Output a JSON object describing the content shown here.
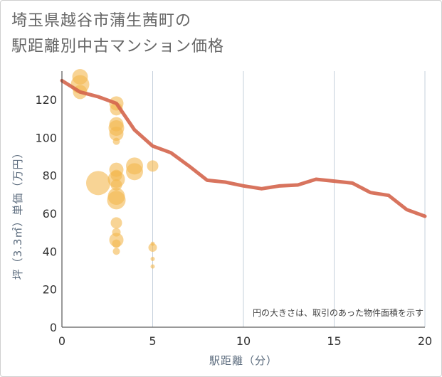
{
  "title_line1": "埼玉県越谷市蒲生茜町の",
  "title_line2": "駅距離別中古マンション価格",
  "chart_data": {
    "type": "scatter",
    "xlabel": "駅距離（分）",
    "ylabel": "坪（3.3㎡）単価（万円）",
    "xlim": [
      0,
      20
    ],
    "ylim": [
      0,
      135
    ],
    "xticks": [
      0,
      5,
      10,
      15,
      20
    ],
    "yticks": [
      0,
      20,
      40,
      60,
      80,
      100,
      120
    ],
    "grid": "vertical",
    "note": "円の大きさは、取引のあった物件面積を示す",
    "bubble_color": "#f3b84e",
    "line_color": "#d4654c",
    "bubbles": [
      {
        "x": 1,
        "y": 132,
        "r": 11
      },
      {
        "x": 1,
        "y": 128,
        "r": 13
      },
      {
        "x": 1,
        "y": 124,
        "r": 10
      },
      {
        "x": 3,
        "y": 118,
        "r": 10
      },
      {
        "x": 3,
        "y": 115,
        "r": 9
      },
      {
        "x": 3,
        "y": 107,
        "r": 10
      },
      {
        "x": 3,
        "y": 105,
        "r": 11
      },
      {
        "x": 3,
        "y": 102,
        "r": 10
      },
      {
        "x": 3,
        "y": 98,
        "r": 5
      },
      {
        "x": 3,
        "y": 83,
        "r": 10
      },
      {
        "x": 3,
        "y": 80,
        "r": 8
      },
      {
        "x": 3,
        "y": 78,
        "r": 12
      },
      {
        "x": 3,
        "y": 75,
        "r": 8
      },
      {
        "x": 3,
        "y": 69,
        "r": 12
      },
      {
        "x": 3,
        "y": 67,
        "r": 13
      },
      {
        "x": 3,
        "y": 55,
        "r": 8
      },
      {
        "x": 3,
        "y": 50,
        "r": 6
      },
      {
        "x": 3,
        "y": 46,
        "r": 10
      },
      {
        "x": 3,
        "y": 44,
        "r": 6
      },
      {
        "x": 3,
        "y": 40,
        "r": 5
      },
      {
        "x": 2,
        "y": 76,
        "r": 17
      },
      {
        "x": 4,
        "y": 85,
        "r": 12
      },
      {
        "x": 4,
        "y": 82,
        "r": 12
      },
      {
        "x": 5,
        "y": 85,
        "r": 8
      },
      {
        "x": 5,
        "y": 44,
        "r": 3
      },
      {
        "x": 5,
        "y": 42,
        "r": 6
      },
      {
        "x": 5,
        "y": 36,
        "r": 3
      },
      {
        "x": 5,
        "y": 32,
        "r": 3
      }
    ],
    "trend": {
      "x": [
        0,
        1,
        2,
        3,
        4,
        5,
        6,
        7,
        8,
        9,
        10,
        11,
        12,
        13,
        14,
        15,
        16,
        17,
        18,
        19,
        20
      ],
      "y": [
        130,
        124,
        121.5,
        118,
        104,
        95.5,
        92,
        85,
        77.5,
        76.5,
        74.5,
        73,
        74.5,
        75,
        78,
        77,
        76,
        71,
        69.5,
        62,
        58.5
      ]
    }
  }
}
